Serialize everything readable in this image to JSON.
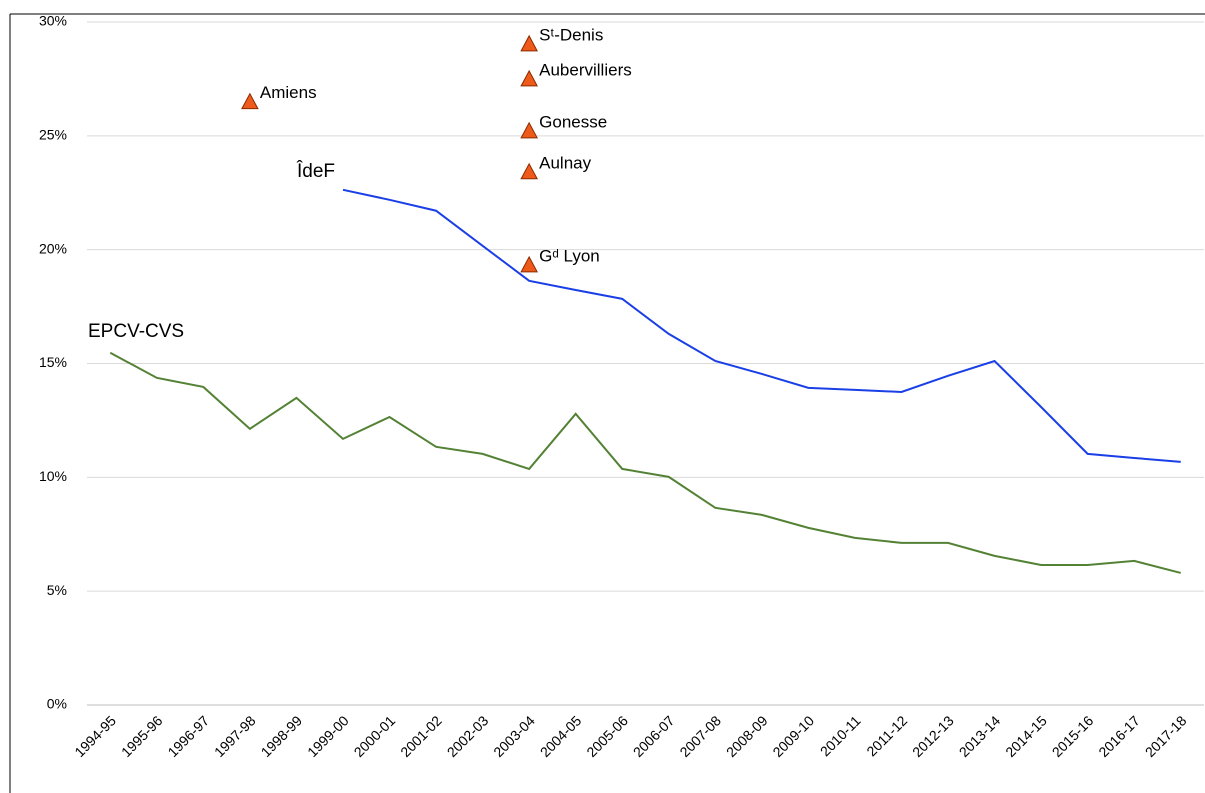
{
  "chart_data": {
    "type": "line",
    "categories": [
      "1994-95",
      "1995-96",
      "1996-97",
      "1997-98",
      "1998-99",
      "1999-00",
      "2000-01",
      "2001-02",
      "2002-03",
      "2003-04",
      "2004-05",
      "2005-06",
      "2006-07",
      "2007-08",
      "2008-09",
      "2009-10",
      "2010-11",
      "2011-12",
      "2012-13",
      "2013-14",
      "2014-15",
      "2015-16",
      "2016-17",
      "2017-18"
    ],
    "series": [
      {
        "name": "ÎdeF",
        "color": "#1a3fe6",
        "values": [
          null,
          null,
          null,
          null,
          null,
          22.63,
          22.19,
          21.71,
          20.17,
          18.63,
          18.23,
          17.84,
          16.3,
          15.11,
          14.54,
          13.93,
          13.84,
          13.75,
          14.46,
          15.11,
          13.09,
          11.03,
          10.85,
          10.68
        ]
      },
      {
        "name": "EPCV-CVS",
        "color": "#548235",
        "values": [
          15.47,
          14.37,
          13.97,
          12.13,
          13.49,
          11.69,
          12.65,
          11.34,
          11.03,
          10.37,
          12.79,
          10.37,
          10.02,
          8.66,
          8.35,
          7.78,
          7.34,
          7.12,
          7.12,
          6.55,
          6.15,
          6.15,
          6.33,
          5.8
        ]
      }
    ],
    "points": {
      "color": "#ed5a1a",
      "items": [
        {
          "label": "Amiens",
          "category": "1997-98",
          "value": 26.5
        },
        {
          "label": "Sᵗ-Denis",
          "category": "2003-04",
          "value": 29.04
        },
        {
          "label": "Aubervilliers",
          "category": "2003-04",
          "value": 27.5
        },
        {
          "label": "Gonesse",
          "category": "2003-04",
          "value": 25.22
        },
        {
          "label": "Aulnay",
          "category": "2003-04",
          "value": 23.42
        },
        {
          "label": "Gᵈ Lyon",
          "category": "2003-04",
          "value": 19.33
        }
      ]
    },
    "ylim": [
      0,
      30
    ],
    "yticks": [
      {
        "value": 0,
        "label": "0%"
      },
      {
        "value": 5,
        "label": "5%"
      },
      {
        "value": 10,
        "label": "10%"
      },
      {
        "value": 15,
        "label": "15%"
      },
      {
        "value": 20,
        "label": "20%"
      },
      {
        "value": 25,
        "label": "25%"
      },
      {
        "value": 30,
        "label": "30%"
      }
    ],
    "grid": true
  }
}
